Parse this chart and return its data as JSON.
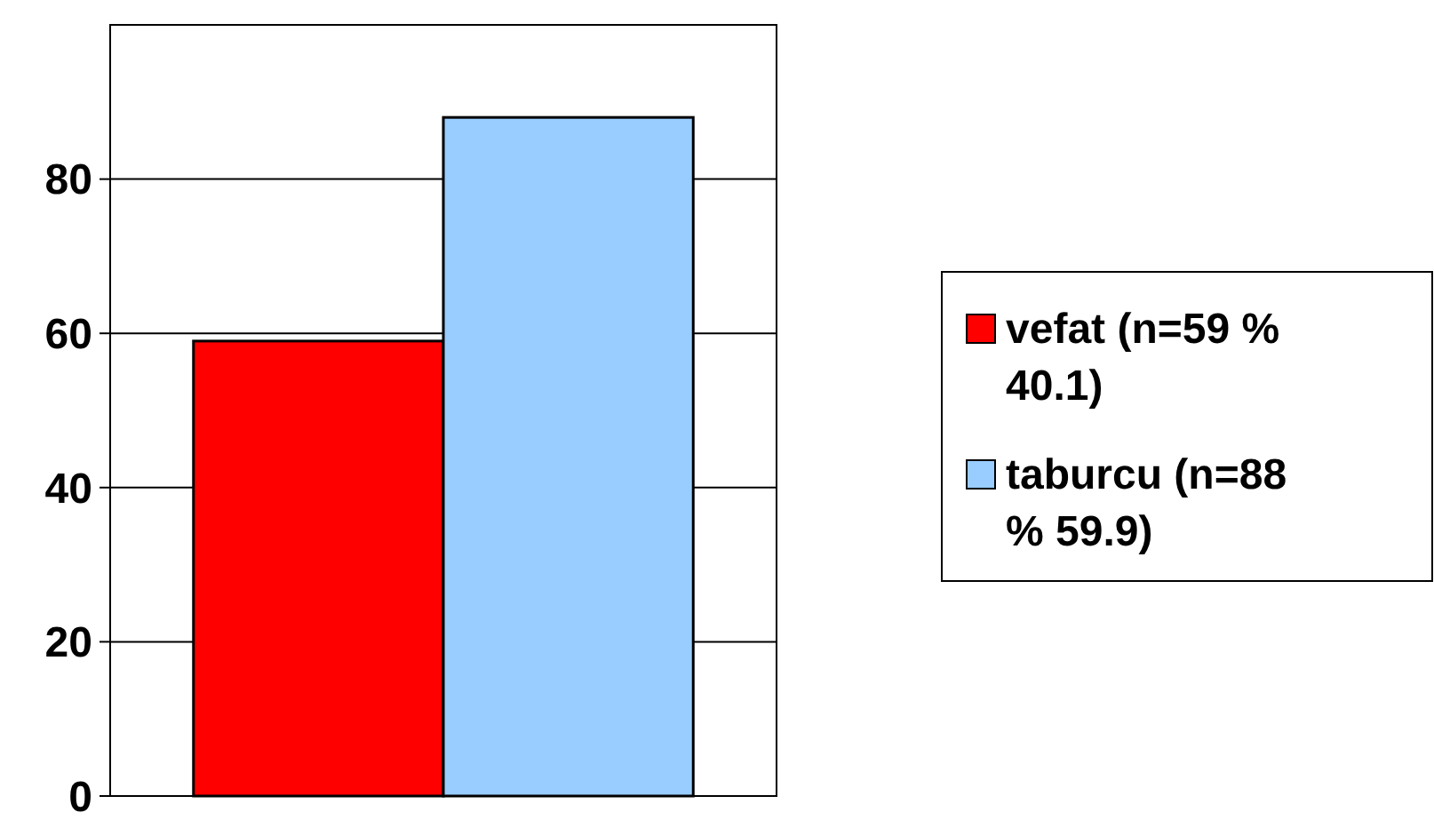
{
  "chart_data": {
    "type": "bar",
    "categories": [
      null
    ],
    "series": [
      {
        "name": "vefat (n=59 % 40.1)",
        "color": "#ff0000",
        "values": [
          59
        ]
      },
      {
        "name": "taburcu (n=88 % 59.9)",
        "color": "#99ccff",
        "values": [
          88
        ]
      }
    ],
    "ylim": [
      0,
      100
    ],
    "yticks": [
      0,
      20,
      40,
      60,
      80
    ],
    "grid": "y",
    "legend": "right"
  }
}
